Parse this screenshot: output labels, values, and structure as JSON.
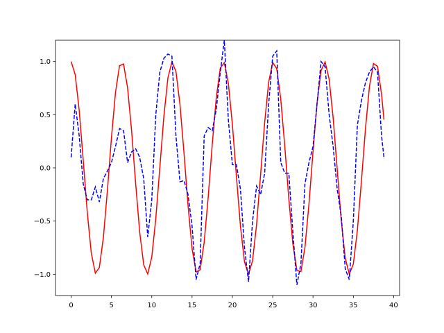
{
  "chart_data": {
    "type": "line",
    "x": [
      0,
      0.5,
      1,
      1.5,
      2,
      2.5,
      3,
      3.5,
      4,
      4.5,
      5,
      5.5,
      6,
      6.5,
      7,
      7.5,
      8,
      8.5,
      9,
      9.5,
      10,
      10.5,
      11,
      11.5,
      12,
      12.5,
      13,
      13.5,
      14,
      14.5,
      15,
      15.5,
      16,
      16.5,
      17,
      17.5,
      18,
      18.5,
      19,
      19.5,
      20,
      20.5,
      21,
      21.5,
      22,
      22.5,
      23,
      23.5,
      24,
      24.5,
      25,
      25.5,
      26,
      26.5,
      27,
      27.5,
      28,
      28.5,
      29,
      29.5,
      30,
      30.5,
      31,
      31.5,
      32,
      32.5,
      33,
      33.5,
      34,
      34.5,
      35,
      35.5,
      36,
      36.5,
      37,
      37.5,
      38,
      38.5,
      38.8
    ],
    "series": [
      {
        "color": "#ff0000",
        "dash": false,
        "values": [
          1,
          0.878,
          0.54,
          0.071,
          -0.416,
          -0.801,
          -0.99,
          -0.936,
          -0.654,
          -0.211,
          0.284,
          0.709,
          0.96,
          0.977,
          0.754,
          0.347,
          -0.146,
          -0.602,
          -0.911,
          -0.997,
          -0.839,
          -0.476,
          0.004,
          0.483,
          0.844,
          0.998,
          0.907,
          0.595,
          0.137,
          -0.355,
          -0.76,
          -0.979,
          -0.958,
          -0.7,
          -0.275,
          0.22,
          0.66,
          0.939,
          0.989,
          0.795,
          0.408,
          -0.08,
          -0.548,
          -0.883,
          -1.0,
          -0.873,
          -0.533,
          -0.062,
          0.424,
          0.806,
          0.991,
          0.933,
          0.647,
          0.202,
          -0.292,
          -0.715,
          -0.963,
          -0.975,
          -0.748,
          -0.339,
          0.154,
          0.609,
          0.915,
          0.996,
          0.834,
          0.468,
          -0.013,
          -0.491,
          -0.849,
          -0.999,
          -0.904,
          -0.588,
          -0.128,
          0.363,
          0.765,
          0.981,
          0.955,
          0.693,
          0.453
        ]
      },
      {
        "color": "#0000ff",
        "dash": true,
        "values": [
          0.1,
          0.6,
          0.3,
          -0.15,
          -0.3,
          -0.3,
          -0.18,
          -0.32,
          -0.1,
          -0.03,
          0.05,
          0.2,
          0.37,
          0.35,
          0.05,
          0.15,
          0.18,
          0.1,
          -0.1,
          -0.65,
          -0.3,
          0.5,
          0.9,
          1.03,
          1.07,
          1.05,
          0.3,
          -0.13,
          -0.12,
          -0.25,
          -0.55,
          -1.05,
          -0.9,
          0.3,
          0.38,
          0.35,
          0.55,
          0.9,
          1.2,
          0.45,
          0.03,
          0.03,
          -0.2,
          -0.75,
          -1.07,
          -0.5,
          -0.17,
          -0.25,
          -0.05,
          0.6,
          1.05,
          1.1,
          0.05,
          -0.05,
          -0.05,
          -0.6,
          -1.1,
          -0.9,
          -0.15,
          0.05,
          0.2,
          0.6,
          1.0,
          0.95,
          0.5,
          0.2,
          -0.2,
          -0.45,
          -0.95,
          -1.05,
          -0.5,
          0.4,
          0.63,
          0.8,
          0.9,
          0.95,
          0.9,
          0.3,
          0.1
        ]
      }
    ],
    "xlim": [
      -1.94,
      40.74
    ],
    "ylim": [
      -1.2,
      1.2
    ],
    "xticks": [
      0,
      5,
      10,
      15,
      20,
      25,
      30,
      35,
      40
    ],
    "yticks": [
      {
        "value": -1,
        "label": "−1.0"
      },
      {
        "value": -0.5,
        "label": "−0.5"
      },
      {
        "value": 0,
        "label": "0.0"
      },
      {
        "value": 0.5,
        "label": "0.5"
      },
      {
        "value": 1,
        "label": "1.0"
      }
    ]
  }
}
